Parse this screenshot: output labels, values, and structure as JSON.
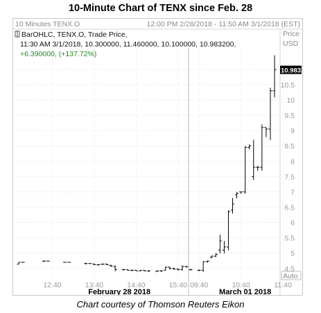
{
  "page_title": "10-Minute Chart of TENX since Feb. 28",
  "credit": "Chart courtesy of Thomson Reuters Eikon",
  "header": {
    "left": "10 Minutes TENX.O",
    "right": "12:00 PM 2/28/2018 - 11:50 AM 3/1/2018 (EST)"
  },
  "info": {
    "line1": "BarOHLC, TENX.O, Trade Price,",
    "line2": "11:30 AM 3/1/2018, 10.300000, 11.460000, 10.100000, 10.983200,",
    "line3": "+6.390000, (+137.72%)"
  },
  "axis_header": [
    "Price",
    "USD"
  ],
  "auto_label": "Auto",
  "colors": {
    "bar": "#000000",
    "grid": "#cccccc",
    "last_price_bg": "#000000",
    "last_price_fg": "#ffffff",
    "change_green": "#1f8a1f"
  },
  "chart_data": {
    "type": "ohlc",
    "title": "10-Minute Chart of TENX since Feb. 28",
    "ylabel": "Price USD",
    "ylim": [
      4.2,
      11.7
    ],
    "y_ticks": [
      4.5,
      5,
      5.5,
      6,
      6.5,
      7,
      7.5,
      8,
      8.5,
      9,
      9.5,
      10,
      10.5,
      11
    ],
    "y_tick_labels": [
      "4.5",
      "5",
      "5.5",
      "6",
      "6.5",
      "7",
      "7.5",
      "8",
      "8.5",
      "9",
      "9.5",
      "10",
      "10.5",
      "11"
    ],
    "last_price": 10.9832,
    "last_price_label": "10.983200",
    "x_ticks": [
      {
        "label": "12:40",
        "bar": 8
      },
      {
        "label": "13:40",
        "bar": 18
      },
      {
        "label": "14:40",
        "bar": 28
      },
      {
        "label": "15:40",
        "bar": 38
      },
      {
        "label": "09:40",
        "bar": 43
      },
      {
        "label": "10:40",
        "bar": 53
      },
      {
        "label": "11:40",
        "bar": 63
      }
    ],
    "date_labels": [
      {
        "label": "February 28 2018",
        "bar": 24
      },
      {
        "label": "March 01 2018",
        "bar": 54
      }
    ],
    "session_break_after_bar": 40,
    "bars": [
      {
        "o": 4.64,
        "h": 4.7,
        "l": 4.64,
        "c": 4.7
      },
      {
        "o": 4.7,
        "h": 4.7,
        "l": 4.7,
        "c": 4.7
      },
      {
        "o": null,
        "h": null,
        "l": null,
        "c": null
      },
      {
        "o": null,
        "h": null,
        "l": null,
        "c": null
      },
      {
        "o": null,
        "h": null,
        "l": null,
        "c": null
      },
      {
        "o": null,
        "h": null,
        "l": null,
        "c": null
      },
      {
        "o": 4.74,
        "h": 4.76,
        "l": 4.72,
        "c": 4.74
      },
      {
        "o": 4.74,
        "h": 4.74,
        "l": 4.74,
        "c": 4.74
      },
      {
        "o": null,
        "h": null,
        "l": null,
        "c": null
      },
      {
        "o": null,
        "h": null,
        "l": null,
        "c": null
      },
      {
        "o": null,
        "h": null,
        "l": null,
        "c": null
      },
      {
        "o": 4.7,
        "h": 4.7,
        "l": 4.7,
        "c": 4.7
      },
      {
        "o": 4.7,
        "h": 4.7,
        "l": 4.7,
        "c": 4.7
      },
      {
        "o": null,
        "h": null,
        "l": null,
        "c": null
      },
      {
        "o": null,
        "h": null,
        "l": null,
        "c": null
      },
      {
        "o": null,
        "h": null,
        "l": null,
        "c": null
      },
      {
        "o": 4.66,
        "h": 4.68,
        "l": 4.64,
        "c": 4.66
      },
      {
        "o": 4.66,
        "h": 4.66,
        "l": 4.66,
        "c": 4.66
      },
      {
        "o": 4.64,
        "h": 4.66,
        "l": 4.62,
        "c": 4.62
      },
      {
        "o": 4.62,
        "h": 4.64,
        "l": 4.6,
        "c": 4.62
      },
      {
        "o": 4.64,
        "h": 4.66,
        "l": 4.62,
        "c": 4.64
      },
      {
        "o": 4.64,
        "h": 4.66,
        "l": 4.62,
        "c": 4.62
      },
      {
        "o": 4.6,
        "h": 4.62,
        "l": 4.56,
        "c": 4.58
      },
      {
        "o": 4.56,
        "h": 4.6,
        "l": 4.42,
        "c": 4.46
      },
      {
        "o": null,
        "h": null,
        "l": null,
        "c": null
      },
      {
        "o": 4.46,
        "h": 4.48,
        "l": 4.44,
        "c": 4.46
      },
      {
        "o": 4.46,
        "h": 4.46,
        "l": 4.44,
        "c": 4.44
      },
      {
        "o": 4.44,
        "h": 4.46,
        "l": 4.42,
        "c": 4.44
      },
      {
        "o": 4.44,
        "h": 4.44,
        "l": 4.42,
        "c": 4.42
      },
      {
        "o": 4.42,
        "h": 4.44,
        "l": 4.42,
        "c": 4.44
      },
      {
        "o": 4.44,
        "h": 4.44,
        "l": 4.42,
        "c": 4.42
      },
      {
        "o": 4.42,
        "h": 4.44,
        "l": 4.4,
        "c": 4.42
      },
      {
        "o": null,
        "h": null,
        "l": null,
        "c": null
      },
      {
        "o": 4.4,
        "h": 4.44,
        "l": 4.4,
        "c": 4.42
      },
      {
        "o": 4.42,
        "h": 4.44,
        "l": 4.4,
        "c": 4.42
      },
      {
        "o": 4.44,
        "h": 4.56,
        "l": 4.44,
        "c": 4.54
      },
      {
        "o": 4.54,
        "h": 4.56,
        "l": 4.48,
        "c": 4.5
      },
      {
        "o": 4.5,
        "h": 4.52,
        "l": 4.46,
        "c": 4.48
      },
      {
        "o": 4.48,
        "h": 4.5,
        "l": 4.44,
        "c": 4.46
      },
      {
        "o": 4.46,
        "h": 4.6,
        "l": 4.44,
        "c": 4.56
      },
      {
        "o": 4.56,
        "h": 4.58,
        "l": 4.54,
        "c": 4.56
      },
      {
        "o": 4.46,
        "h": 4.48,
        "l": 4.44,
        "c": 4.46
      },
      {
        "o": null,
        "h": null,
        "l": null,
        "c": null
      },
      {
        "o": 4.44,
        "h": 4.46,
        "l": 4.42,
        "c": 4.44
      },
      {
        "o": 4.44,
        "h": 4.74,
        "l": 4.4,
        "c": 4.72
      },
      {
        "o": 4.72,
        "h": 4.76,
        "l": 4.7,
        "c": 4.74
      },
      {
        "o": 4.86,
        "h": 4.92,
        "l": 4.84,
        "c": 4.9
      },
      {
        "o": 4.9,
        "h": 5.0,
        "l": 4.88,
        "c": 4.96
      },
      {
        "o": 5.1,
        "h": 5.6,
        "l": 5.0,
        "c": 5.4
      },
      {
        "o": 5.1,
        "h": 5.4,
        "l": 5.0,
        "c": 5.2
      },
      {
        "o": 5.2,
        "h": 6.4,
        "l": 5.1,
        "c": 6.35
      },
      {
        "o": 6.4,
        "h": 6.8,
        "l": 6.3,
        "c": 6.6
      },
      {
        "o": 6.9,
        "h": 7.0,
        "l": 6.8,
        "c": 6.95
      },
      {
        "o": 7.0,
        "h": 7.0,
        "l": 6.95,
        "c": 7.0
      },
      {
        "o": 7.0,
        "h": 8.5,
        "l": 6.95,
        "c": 8.45
      },
      {
        "o": 8.45,
        "h": 8.55,
        "l": 8.4,
        "c": 8.5
      },
      {
        "o": 7.5,
        "h": 8.7,
        "l": 7.4,
        "c": 7.8
      },
      {
        "o": 7.8,
        "h": 7.85,
        "l": 7.7,
        "c": 7.8
      },
      {
        "o": 7.8,
        "h": 9.2,
        "l": 7.7,
        "c": 9.1
      },
      {
        "o": 9.1,
        "h": 9.1,
        "l": 8.8,
        "c": 9.05
      },
      {
        "o": 9.05,
        "h": 10.4,
        "l": 8.7,
        "c": 10.3
      },
      {
        "o": 10.3,
        "h": 11.46,
        "l": 10.1,
        "c": 10.9832
      }
    ]
  }
}
